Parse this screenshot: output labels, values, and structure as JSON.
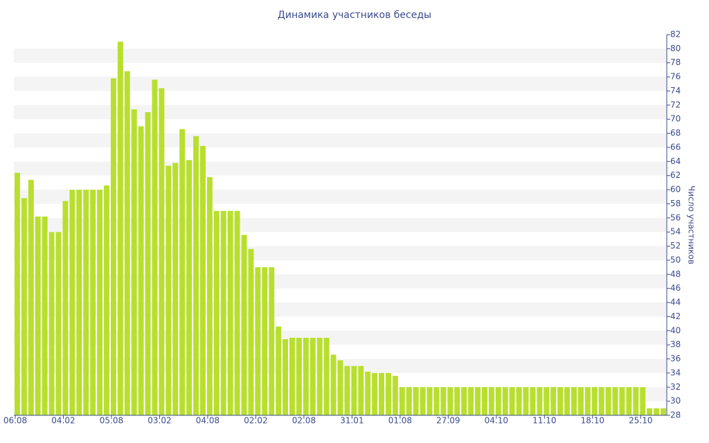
{
  "chart_data": {
    "type": "bar",
    "title": "Динамика участников беседы",
    "y_label": "Число участников",
    "categories": [
      "06.08",
      null,
      null,
      null,
      null,
      null,
      null,
      "04.02",
      null,
      null,
      null,
      null,
      null,
      null,
      "05.08",
      null,
      null,
      null,
      null,
      null,
      null,
      "03.02",
      null,
      null,
      null,
      null,
      null,
      null,
      "04.08",
      null,
      null,
      null,
      null,
      null,
      null,
      "02.02",
      null,
      null,
      null,
      null,
      null,
      null,
      "02.08",
      null,
      null,
      null,
      null,
      null,
      null,
      "31.01",
      null,
      null,
      null,
      null,
      null,
      null,
      "01.08",
      null,
      null,
      null,
      null,
      null,
      null,
      "27.09",
      null,
      null,
      null,
      null,
      null,
      null,
      "04.10",
      null,
      null,
      null,
      null,
      null,
      null,
      "11.10",
      null,
      null,
      null,
      null,
      null,
      null,
      "18.10",
      null,
      null,
      null,
      null,
      null,
      null,
      "25.10",
      null,
      null,
      null
    ],
    "values": [
      62.4,
      58.8,
      61.4,
      56.2,
      56.2,
      54,
      54,
      58.4,
      60,
      60,
      60,
      60,
      60,
      60.6,
      75.8,
      81,
      76.8,
      71.4,
      69,
      71,
      75.6,
      74.4,
      63.4,
      63.8,
      68.6,
      64.2,
      67.6,
      66.2,
      61.8,
      57,
      57,
      57,
      57,
      53.6,
      51.6,
      49,
      49,
      49,
      40.6,
      38.8,
      39,
      39,
      39,
      39,
      39,
      39,
      36.6,
      35.8,
      35,
      35,
      35,
      34.2,
      34,
      34,
      34,
      33.6,
      32,
      32,
      32,
      32,
      32,
      32,
      32,
      32,
      32,
      32,
      32,
      32,
      32,
      32,
      32,
      32,
      32,
      32,
      32,
      32,
      32,
      32,
      32,
      32,
      32,
      32,
      32,
      32,
      32,
      32,
      32,
      32,
      32,
      32,
      32,
      32,
      29,
      29,
      29
    ],
    "color": "#b8df2e",
    "ylim": [
      28,
      82
    ],
    "yticks": [
      28,
      30,
      32,
      34,
      36,
      38,
      40,
      42,
      44,
      46,
      48,
      50,
      52,
      54,
      56,
      58,
      60,
      62,
      64,
      66,
      68,
      70,
      72,
      74,
      76,
      78,
      80,
      82
    ],
    "grid": true
  }
}
